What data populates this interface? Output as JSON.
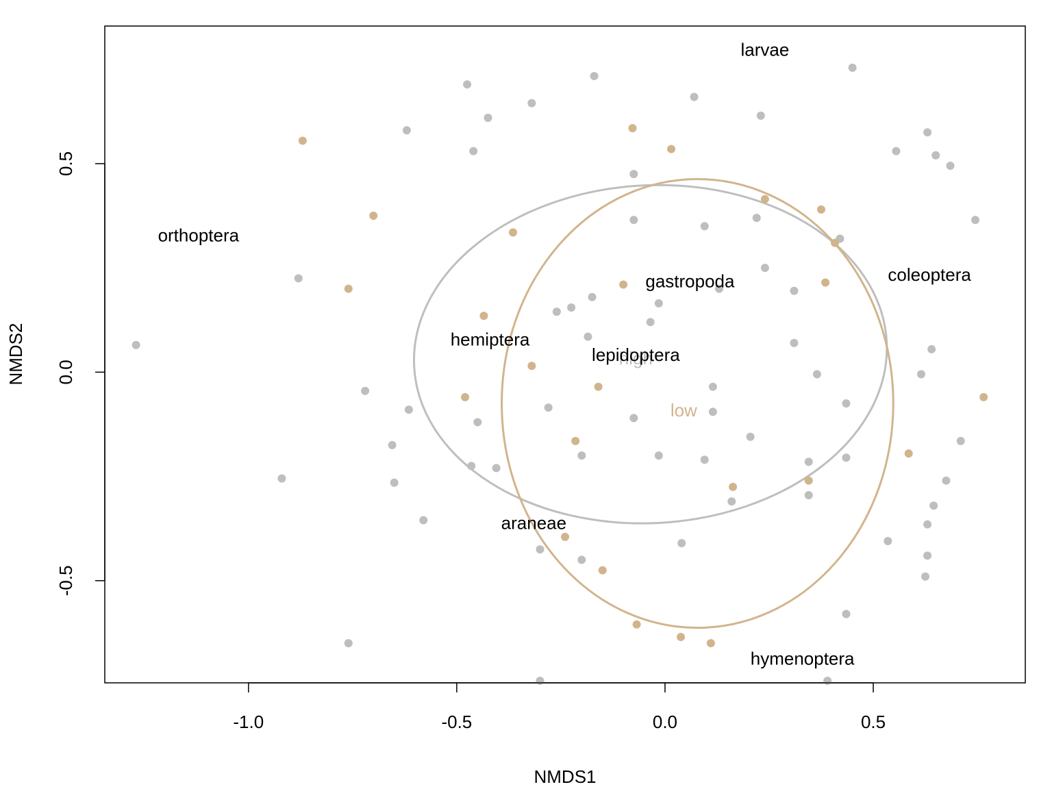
{
  "chart_data": {
    "type": "scatter",
    "xlabel": "NMDS1",
    "ylabel": "NMDS2",
    "xlim": [
      -1.345,
      0.865
    ],
    "ylim": [
      -0.745,
      0.83
    ],
    "x_ticks": [
      -1.0,
      -0.5,
      0.0,
      0.5
    ],
    "x_tick_labels": [
      "-1.0",
      "-0.5",
      "0.0",
      "0.5"
    ],
    "y_ticks": [
      -0.5,
      0.0,
      0.5
    ],
    "y_tick_labels": [
      "-0.5",
      "0.0",
      "0.5"
    ],
    "colors": {
      "high": "#bebebe",
      "low": "#d2b48c",
      "text": "#000000"
    },
    "series": [
      {
        "group": "high",
        "color": "#bebebe",
        "points": [
          [
            -1.27,
            0.065
          ],
          [
            -0.92,
            -0.255
          ],
          [
            -0.88,
            0.225
          ],
          [
            -0.72,
            -0.045
          ],
          [
            -0.76,
            -0.65
          ],
          [
            -0.62,
            0.58
          ],
          [
            -0.655,
            -0.175
          ],
          [
            -0.65,
            -0.265
          ],
          [
            -0.615,
            -0.09
          ],
          [
            -0.58,
            -0.355
          ],
          [
            -0.475,
            0.69
          ],
          [
            -0.465,
            -0.225
          ],
          [
            -0.46,
            0.53
          ],
          [
            -0.45,
            -0.12
          ],
          [
            -0.425,
            0.61
          ],
          [
            -0.405,
            -0.23
          ],
          [
            -0.32,
            0.645
          ],
          [
            -0.3,
            -0.425
          ],
          [
            -0.3,
            -0.74
          ],
          [
            -0.28,
            -0.085
          ],
          [
            -0.26,
            0.145
          ],
          [
            -0.225,
            0.155
          ],
          [
            -0.2,
            -0.2
          ],
          [
            -0.2,
            -0.45
          ],
          [
            -0.185,
            0.085
          ],
          [
            -0.175,
            0.18
          ],
          [
            -0.17,
            0.71
          ],
          [
            -0.075,
            0.475
          ],
          [
            -0.075,
            0.365
          ],
          [
            -0.075,
            -0.11
          ],
          [
            -0.035,
            0.12
          ],
          [
            -0.015,
            0.165
          ],
          [
            -0.015,
            -0.2
          ],
          [
            0.04,
            -0.41
          ],
          [
            0.07,
            0.66
          ],
          [
            0.095,
            0.35
          ],
          [
            0.095,
            -0.21
          ],
          [
            0.115,
            -0.035
          ],
          [
            0.115,
            -0.095
          ],
          [
            0.13,
            0.2
          ],
          [
            0.16,
            -0.31
          ],
          [
            0.205,
            -0.155
          ],
          [
            0.22,
            0.37
          ],
          [
            0.23,
            0.615
          ],
          [
            0.24,
            0.25
          ],
          [
            0.31,
            0.07
          ],
          [
            0.31,
            0.195
          ],
          [
            0.345,
            -0.215
          ],
          [
            0.345,
            -0.295
          ],
          [
            0.365,
            -0.005
          ],
          [
            0.39,
            -0.74
          ],
          [
            0.42,
            0.32
          ],
          [
            0.435,
            -0.075
          ],
          [
            0.435,
            -0.205
          ],
          [
            0.435,
            -0.58
          ],
          [
            0.45,
            0.73
          ],
          [
            0.535,
            -0.405
          ],
          [
            0.555,
            0.53
          ],
          [
            0.615,
            -0.005
          ],
          [
            0.625,
            -0.49
          ],
          [
            0.63,
            -0.44
          ],
          [
            0.63,
            -0.365
          ],
          [
            0.63,
            0.575
          ],
          [
            0.64,
            0.055
          ],
          [
            0.645,
            -0.32
          ],
          [
            0.65,
            0.52
          ],
          [
            0.675,
            -0.26
          ],
          [
            0.685,
            0.495
          ],
          [
            0.71,
            -0.165
          ],
          [
            0.745,
            0.365
          ]
        ]
      },
      {
        "group": "low",
        "color": "#d2b48c",
        "points": [
          [
            -0.87,
            0.555
          ],
          [
            -0.76,
            0.2
          ],
          [
            -0.7,
            0.375
          ],
          [
            -0.48,
            -0.06
          ],
          [
            -0.435,
            0.135
          ],
          [
            -0.365,
            0.335
          ],
          [
            -0.32,
            0.015
          ],
          [
            -0.24,
            -0.395
          ],
          [
            -0.215,
            -0.165
          ],
          [
            -0.16,
            -0.035
          ],
          [
            -0.15,
            -0.475
          ],
          [
            -0.1,
            0.21
          ],
          [
            -0.078,
            0.585
          ],
          [
            -0.068,
            -0.605
          ],
          [
            0.015,
            0.535
          ],
          [
            0.038,
            -0.635
          ],
          [
            0.11,
            -0.65
          ],
          [
            0.163,
            -0.275
          ],
          [
            0.24,
            0.415
          ],
          [
            0.345,
            -0.26
          ],
          [
            0.375,
            0.39
          ],
          [
            0.385,
            0.215
          ],
          [
            0.408,
            0.31
          ],
          [
            0.585,
            -0.195
          ],
          [
            0.765,
            -0.06
          ]
        ]
      }
    ],
    "ellipses": [
      {
        "group": "high",
        "color": "#bebebe",
        "cx": -0.035,
        "cy": 0.043,
        "rx": 0.568,
        "ry": 0.405,
        "rot_deg": -3
      },
      {
        "group": "low",
        "color": "#d2b48c",
        "cx": 0.078,
        "cy": -0.075,
        "rx": 0.47,
        "ry": 0.538,
        "rot_deg": 0
      }
    ],
    "species_labels": [
      {
        "text": "larvae",
        "x": 0.24,
        "y": 0.77
      },
      {
        "text": "orthoptera",
        "x": -1.12,
        "y": 0.325
      },
      {
        "text": "coleoptera",
        "x": 0.635,
        "y": 0.23
      },
      {
        "text": "gastropoda",
        "x": 0.06,
        "y": 0.215
      },
      {
        "text": "hemiptera",
        "x": -0.42,
        "y": 0.075
      },
      {
        "text": "lepidoptera",
        "x": -0.07,
        "y": 0.038
      },
      {
        "text": "araneae",
        "x": -0.315,
        "y": -0.365
      },
      {
        "text": "hymenoptera",
        "x": 0.33,
        "y": -0.69
      }
    ],
    "group_labels": [
      {
        "text": "high",
        "x": -0.07,
        "y": 0.03,
        "color": "#bebebe"
      },
      {
        "text": "low",
        "x": 0.045,
        "y": -0.095,
        "color": "#d2b48c"
      }
    ]
  }
}
